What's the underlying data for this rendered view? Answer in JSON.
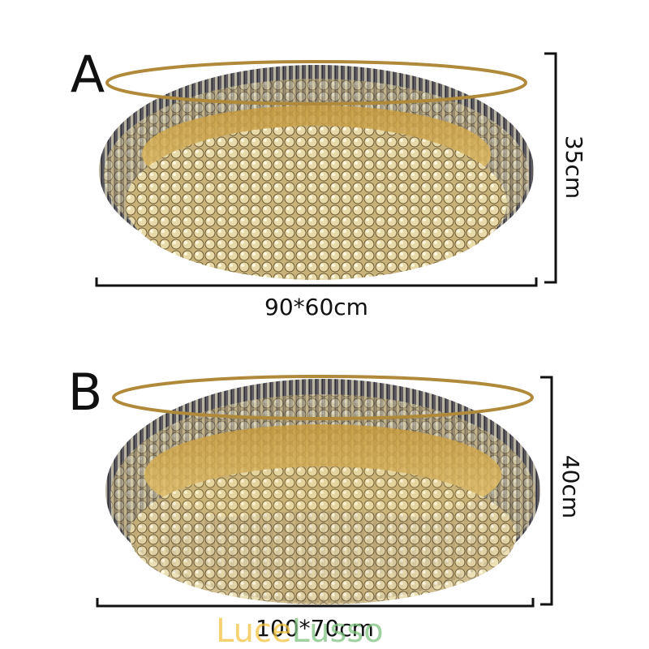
{
  "variants": [
    {
      "label": "A",
      "height": "35cm",
      "size": "90*60cm"
    },
    {
      "label": "B",
      "height": "40cm",
      "size": "100*70cm"
    }
  ],
  "watermark": {
    "first": "Luce",
    "second": "Lusso"
  }
}
